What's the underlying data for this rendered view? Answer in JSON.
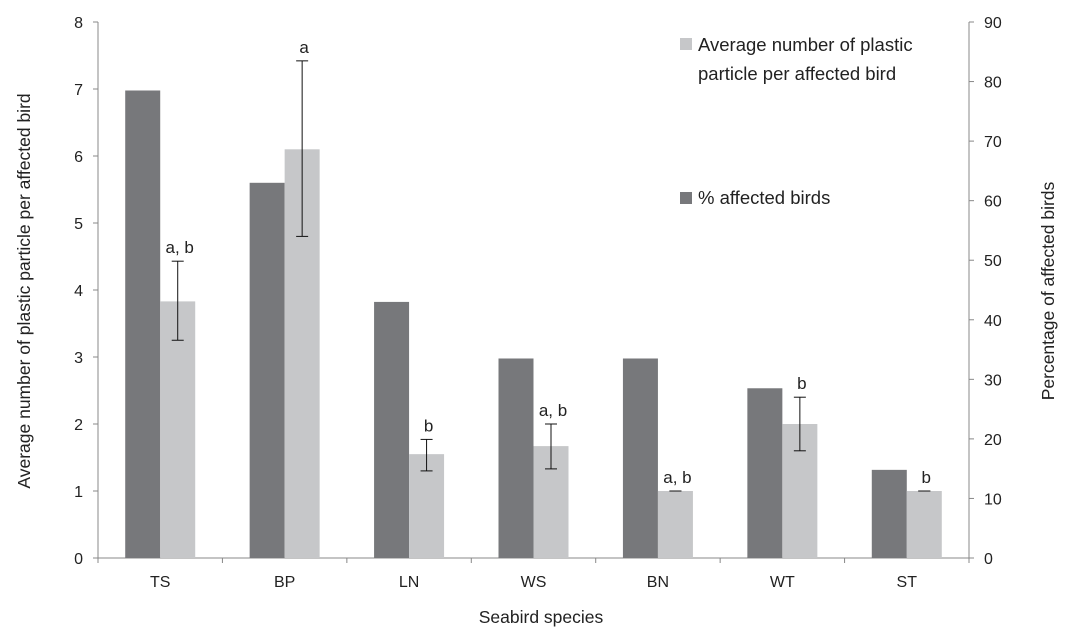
{
  "chart_data": {
    "type": "bar",
    "xlabel": "Seabird species",
    "ylabel_left": "Average number of plastic particle per affected bird",
    "ylabel_right": "Percentage of affected birds",
    "ylim_left": [
      0,
      8
    ],
    "yticks_left": [
      0,
      1,
      2,
      3,
      4,
      5,
      6,
      7,
      8
    ],
    "ylim_right": [
      0,
      90
    ],
    "yticks_right": [
      0,
      10,
      20,
      30,
      40,
      50,
      60,
      70,
      80,
      90
    ],
    "grid": false,
    "legend_position": "top-right",
    "categories": [
      "TS",
      "BP",
      "LN",
      "WS",
      "BN",
      "WT",
      "ST"
    ],
    "series": [
      {
        "name": "% affected birds",
        "axis": "right",
        "color": "#77787b",
        "values": [
          78.5,
          63,
          43,
          33.5,
          33.5,
          28.5,
          14.8
        ]
      },
      {
        "name": "Average number of plastic particle per affected bird",
        "legend_lines": [
          "Average number of plastic",
          "particle per affected bird"
        ],
        "axis": "left",
        "color": "#c6c7c9",
        "values": [
          3.83,
          6.1,
          1.55,
          1.67,
          1.0,
          2.0,
          1.0
        ],
        "error_low": [
          3.25,
          4.8,
          1.3,
          1.33,
          1.0,
          1.6,
          1.0
        ],
        "error_high": [
          4.43,
          7.42,
          1.77,
          2.0,
          1.0,
          2.4,
          1.0
        ],
        "annotations": [
          "a, b",
          "a",
          "b",
          "a, b",
          "a, b",
          "b",
          "b"
        ]
      }
    ]
  }
}
